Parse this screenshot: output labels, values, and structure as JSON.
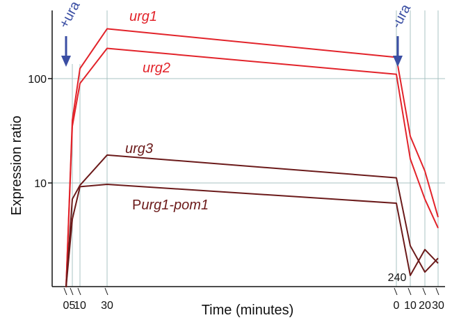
{
  "chart_data": {
    "type": "line",
    "xlabel": "Time (minutes)",
    "ylabel": "Expression ratio",
    "y_scale": "log",
    "ylim": [
      1,
      400
    ],
    "y_ticks": [
      {
        "value": 100,
        "label": "100"
      },
      {
        "value": 10,
        "label": "10"
      }
    ],
    "x_ticks": [
      {
        "label": "0",
        "phase": "induction",
        "minutes": 0
      },
      {
        "label": "5",
        "phase": "induction",
        "minutes": 5
      },
      {
        "label": "10",
        "phase": "induction",
        "minutes": 10
      },
      {
        "label": "30",
        "phase": "induction",
        "minutes": 30
      },
      {
        "label": "0",
        "phase": "repression",
        "minutes": 0
      },
      {
        "label": "10",
        "phase": "repression",
        "minutes": 10
      },
      {
        "label": "20",
        "phase": "repression",
        "minutes": 20
      },
      {
        "label": "30",
        "phase": "repression",
        "minutes": 30
      }
    ],
    "extra_label": "240",
    "events": [
      {
        "label": "+ura",
        "at": "induction 0",
        "color": "#3a4ea3"
      },
      {
        "label": "-ura",
        "at": "repression 0",
        "color": "#3a4ea3"
      }
    ],
    "grid": true,
    "series": [
      {
        "name": "urg1",
        "color": "#e2232a",
        "label_italic": true,
        "values": [
          1,
          40,
          125,
          300,
          160,
          28,
          13,
          4.7
        ]
      },
      {
        "name": "urg2",
        "color": "#e2232a",
        "label_italic": true,
        "values": [
          1,
          35,
          90,
          195,
          110,
          17,
          7,
          3.7
        ]
      },
      {
        "name": "urg3",
        "color": "#6b1a1a",
        "label_italic": true,
        "values": [
          1,
          7,
          9.5,
          18.5,
          11.2,
          2.5,
          1.4,
          1.9
        ]
      },
      {
        "name_prefix": "P",
        "name_italic": "urg1-pom1",
        "color": "#6b1a1a",
        "values": [
          1,
          4.5,
          9.2,
          9.7,
          6.4,
          1.3,
          2.3,
          1.7
        ]
      }
    ]
  }
}
